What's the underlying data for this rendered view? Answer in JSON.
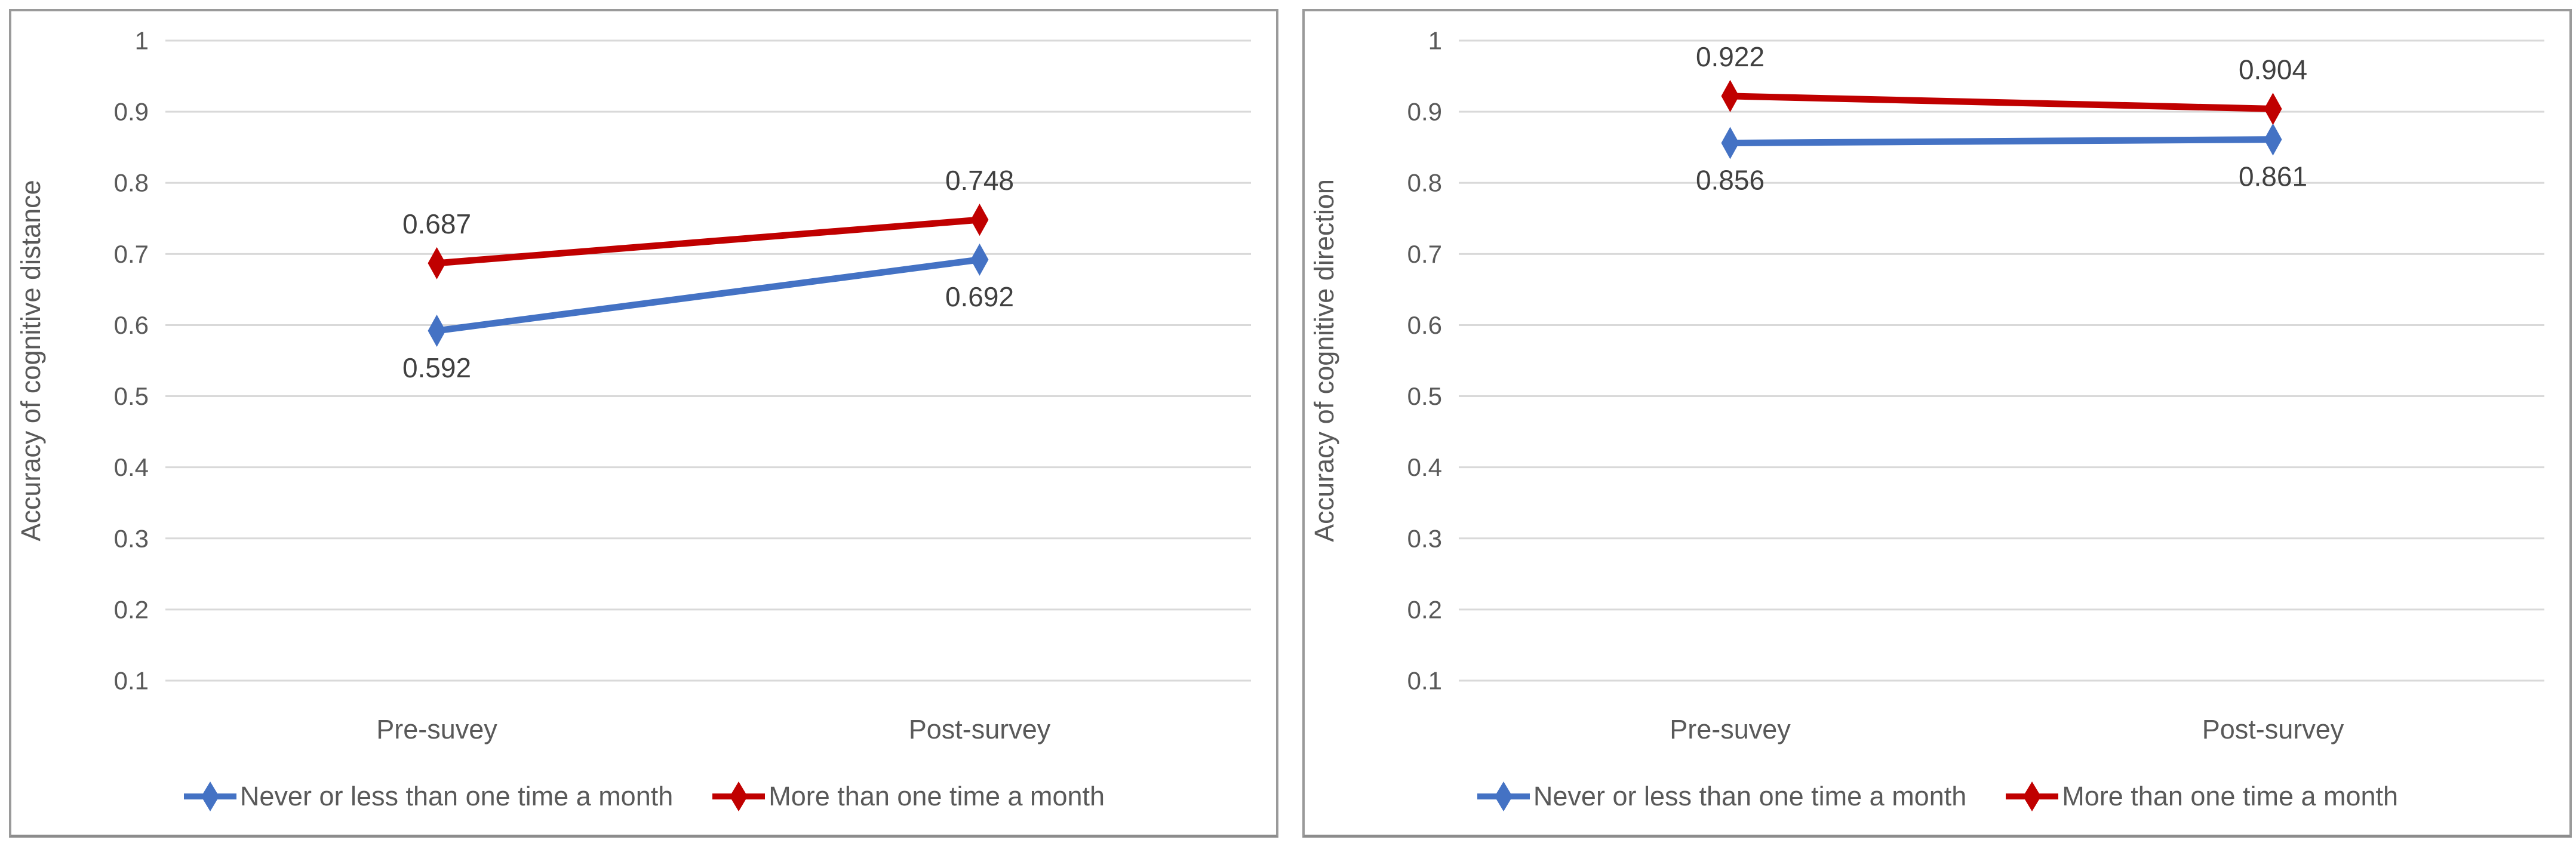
{
  "styles": {
    "background": "#ffffff",
    "panel_border": "#9a9a9a",
    "gridline_color": "#d9d9d9",
    "axis_text_color": "#595959",
    "data_label_color": "#404040",
    "legend_text_color": "#595959",
    "series_blue": "#4472C4",
    "series_red": "#C00000"
  },
  "chart_data": [
    {
      "type": "line",
      "title": "",
      "xlabel": "",
      "ylabel": "Accuracy of cognitive distance",
      "categories": [
        "Pre-suvey",
        "Post-survey"
      ],
      "ylim": [
        0.1,
        1
      ],
      "yticks": [
        "1",
        "0.9",
        "0.8",
        "0.7",
        "0.6",
        "0.5",
        "0.4",
        "0.3",
        "0.2",
        "0.1"
      ],
      "grid": true,
      "legend_position": "bottom",
      "series": [
        {
          "name": "Never or less than one time a month",
          "color": "#4472C4",
          "values": [
            0.592,
            0.692
          ],
          "data_labels": [
            "0.592",
            "0.692"
          ],
          "label_position": "below"
        },
        {
          "name": "More than one time a month",
          "color": "#C00000",
          "values": [
            0.687,
            0.748
          ],
          "data_labels": [
            "0.687",
            "0.748"
          ],
          "label_position": "above"
        }
      ]
    },
    {
      "type": "line",
      "title": "",
      "xlabel": "",
      "ylabel": "Accuracy of cognitive direction",
      "categories": [
        "Pre-suvey",
        "Post-survey"
      ],
      "ylim": [
        0.1,
        1
      ],
      "yticks": [
        "1",
        "0.9",
        "0.8",
        "0.7",
        "0.6",
        "0.5",
        "0.4",
        "0.3",
        "0.2",
        "0.1"
      ],
      "grid": true,
      "legend_position": "bottom",
      "series": [
        {
          "name": "Never or less than one time a month",
          "color": "#4472C4",
          "values": [
            0.856,
            0.861
          ],
          "data_labels": [
            "0.856",
            "0.861"
          ],
          "label_position": "below"
        },
        {
          "name": "More than one time a month",
          "color": "#C00000",
          "values": [
            0.922,
            0.904
          ],
          "data_labels": [
            "0.922",
            "0.904"
          ],
          "label_position": "above"
        }
      ]
    }
  ]
}
